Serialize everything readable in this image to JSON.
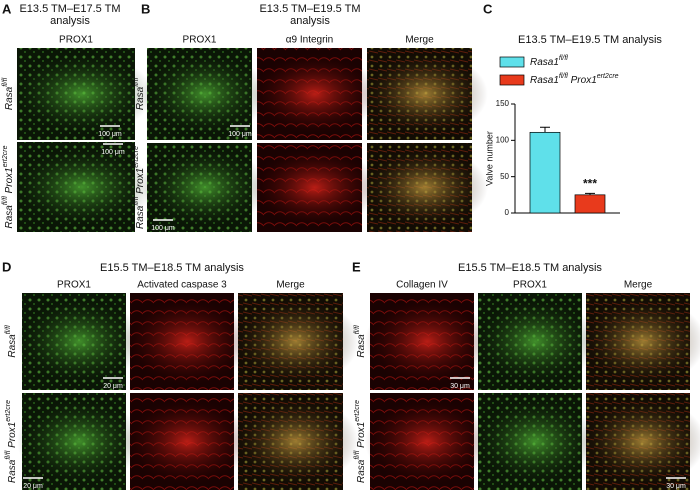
{
  "genotypes": [
    {
      "gene": "Rasa",
      "allele": "fl/fl"
    },
    {
      "gene": "Rasa",
      "allele": "fl/fl",
      "gene2": "Prox1",
      "allele2": "ert2cre"
    }
  ],
  "panel_a": {
    "letter": "A",
    "title": [
      "E13.5 TM–E17.5 TM",
      "analysis"
    ],
    "columns": [
      "PROX1"
    ],
    "scale_bars": [
      "100 μm",
      "100 μm"
    ]
  },
  "panel_b": {
    "letter": "B",
    "title": [
      "E13.5 TM–E19.5 TM",
      "analysis"
    ],
    "columns": [
      "PROX1",
      "α9 Integrin",
      "Merge"
    ],
    "scale_bars": [
      "100 μm",
      "100 μm"
    ]
  },
  "panel_d": {
    "letter": "D",
    "title": [
      "E15.5 TM–E18.5 TM analysis"
    ],
    "columns": [
      "PROX1",
      "Activated caspase 3",
      "Merge"
    ],
    "scale_bars": [
      "20 μm",
      "20 μm"
    ]
  },
  "panel_e": {
    "letter": "E",
    "title": [
      "E15.5 TM–E18.5 TM analysis"
    ],
    "columns": [
      "Collagen IV",
      "PROX1",
      "Merge"
    ],
    "scale_bars": [
      "30 μm",
      "30 μm"
    ]
  },
  "chart_data": {
    "type": "bar",
    "letter": "C",
    "title": "E13.5 TM–E19.5 TM analysis",
    "y_label": "Valve number",
    "series": [
      {
        "name": {
          "gene": "Rasa1",
          "allele": "fl/fl"
        },
        "color": "#5fe0ea",
        "values": [
          111
        ],
        "errors": [
          7
        ]
      },
      {
        "name": {
          "gene": "Rasa1",
          "allele": "fl/fl",
          "gene2": "Prox1",
          "allele2": "ert2cre"
        },
        "color": "#e83a1c",
        "values": [
          25
        ],
        "errors": [
          2
        ]
      }
    ],
    "annotation": "***",
    "ylim": [
      0,
      150
    ],
    "yticks": [
      0,
      50,
      100,
      150
    ]
  }
}
